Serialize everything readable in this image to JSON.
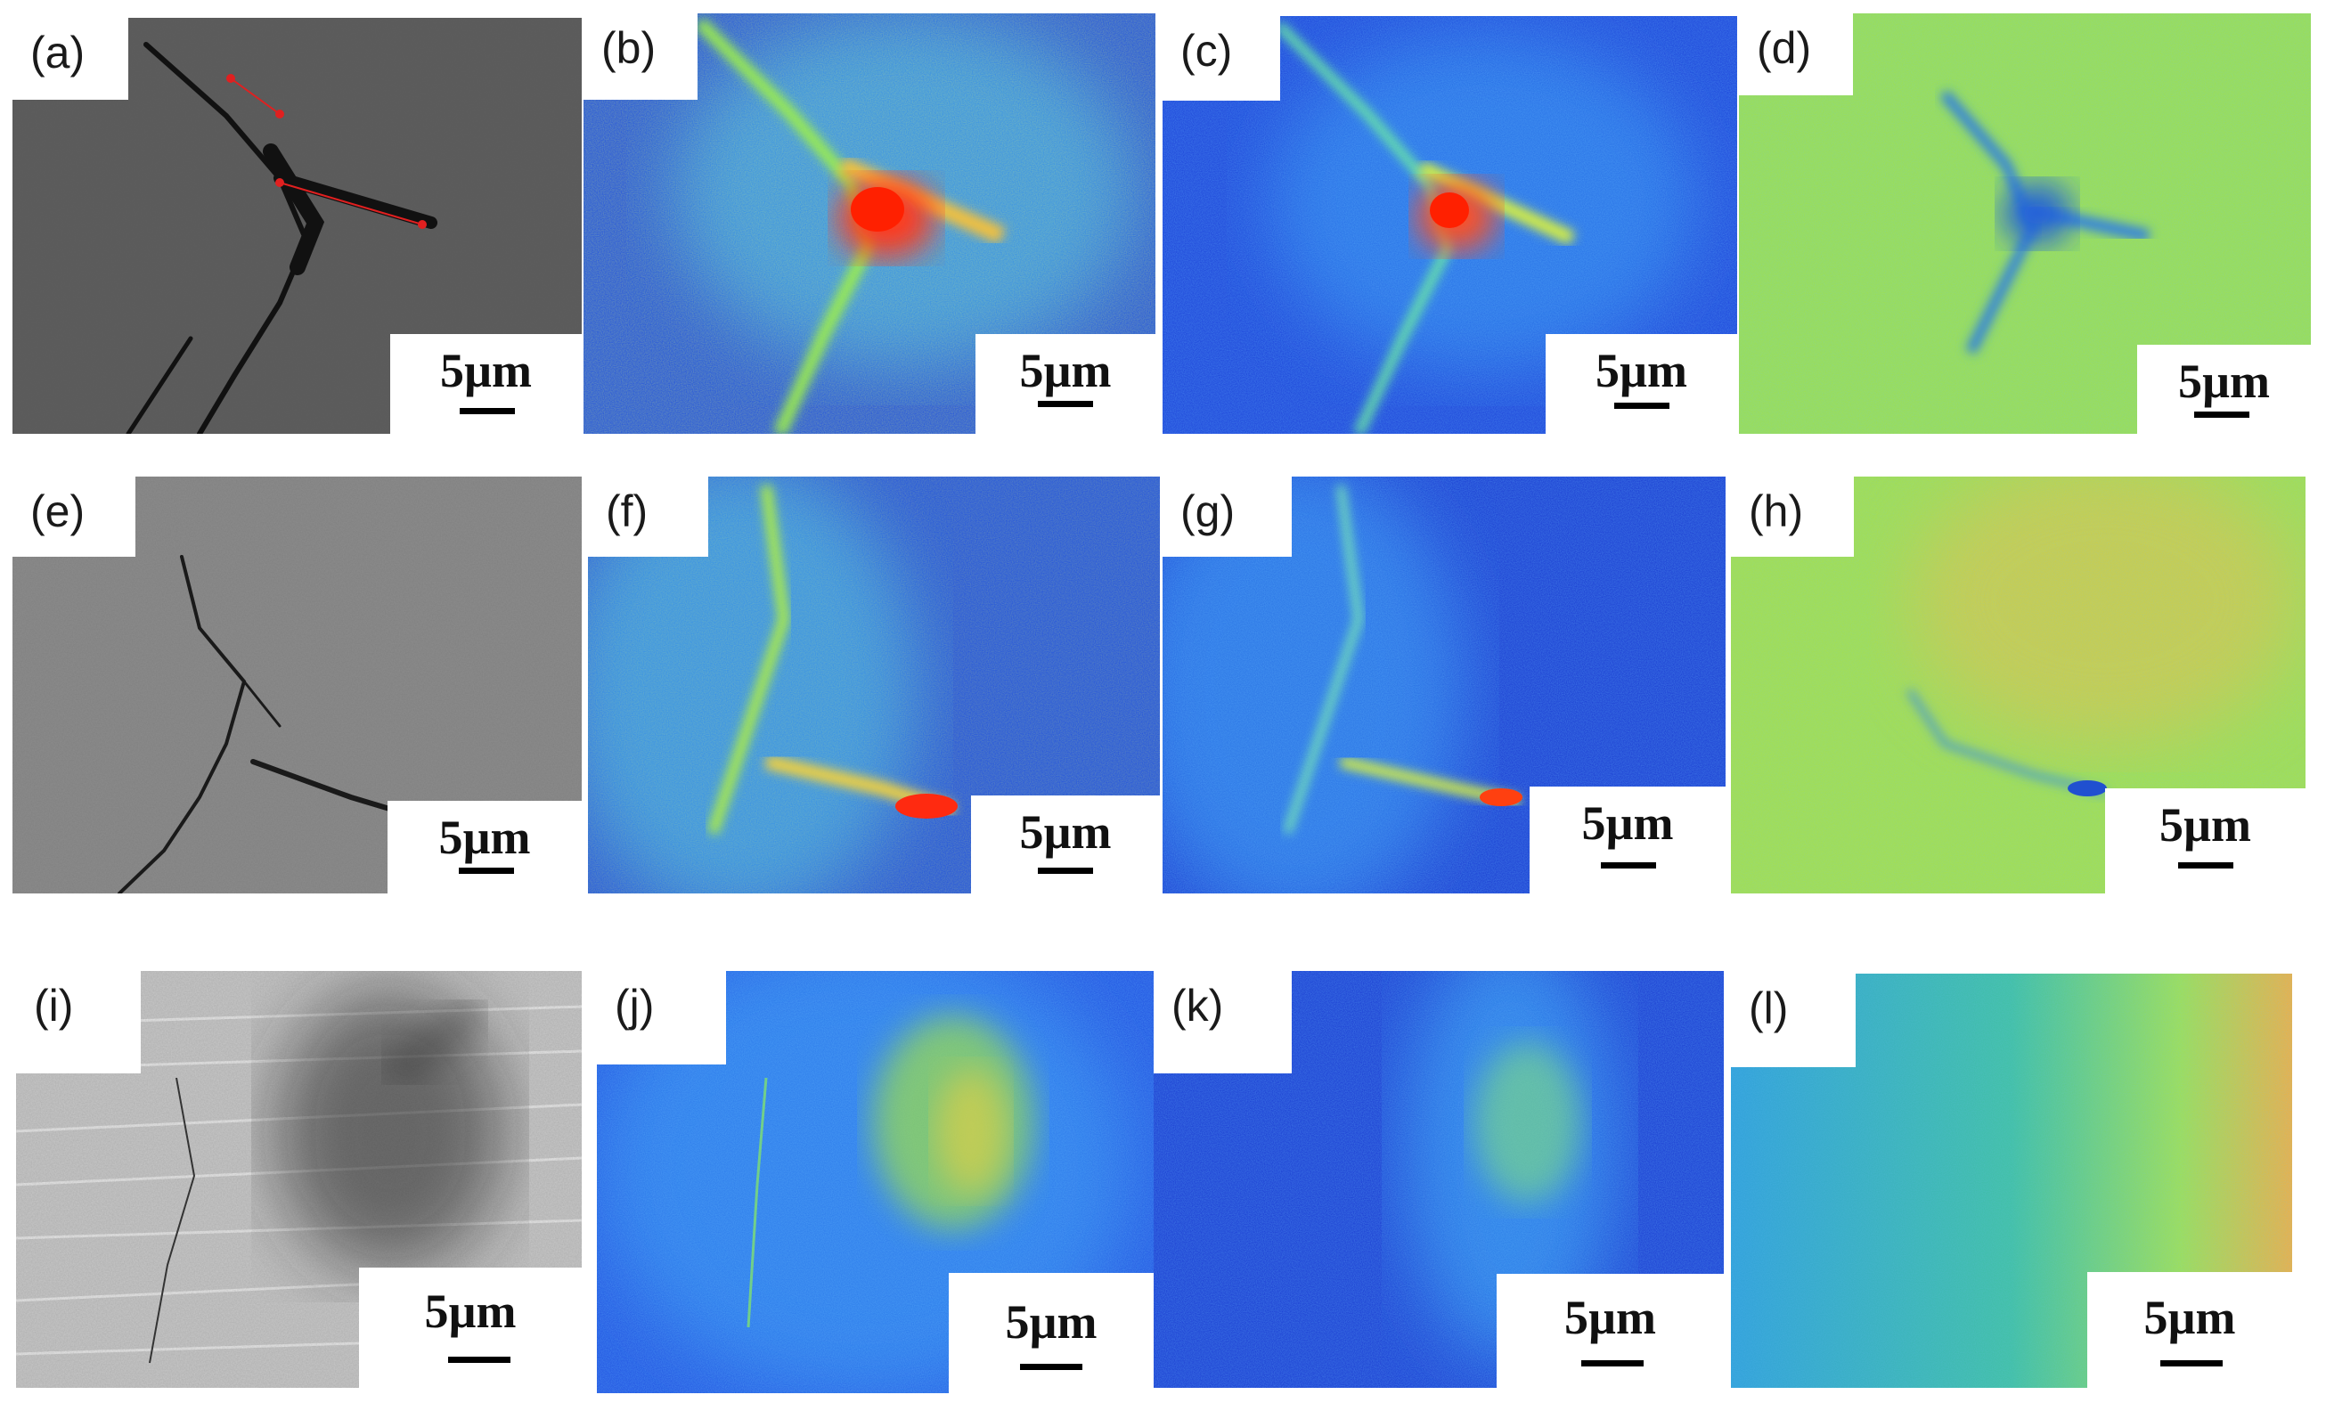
{
  "colors": {
    "background": "#ffffff",
    "scale_bar": "#000000"
  },
  "figure": {
    "panels": [
      {
        "label": "(a)",
        "scale": "5µm",
        "kind": "sem",
        "variant": "a"
      },
      {
        "label": "(b)",
        "scale": "5µm",
        "kind": "map",
        "variant": "b"
      },
      {
        "label": "(c)",
        "scale": "5µm",
        "kind": "map",
        "variant": "c"
      },
      {
        "label": "(d)",
        "scale": "5µm",
        "kind": "map",
        "variant": "d"
      },
      {
        "label": "(e)",
        "scale": "5µm",
        "kind": "sem",
        "variant": "e"
      },
      {
        "label": "(f)",
        "scale": "5µm",
        "kind": "map",
        "variant": "f"
      },
      {
        "label": "(g)",
        "scale": "5µm",
        "kind": "map",
        "variant": "g"
      },
      {
        "label": "(h)",
        "scale": "5µm",
        "kind": "map",
        "variant": "h"
      },
      {
        "label": "(i)",
        "scale": "5µm",
        "kind": "sem",
        "variant": "i"
      },
      {
        "label": "(j)",
        "scale": "5µm",
        "kind": "map",
        "variant": "j"
      },
      {
        "label": "(k)",
        "scale": "5µm",
        "kind": "map",
        "variant": "k"
      },
      {
        "label": "(l)",
        "scale": "5µm",
        "kind": "map",
        "variant": "l"
      }
    ]
  }
}
